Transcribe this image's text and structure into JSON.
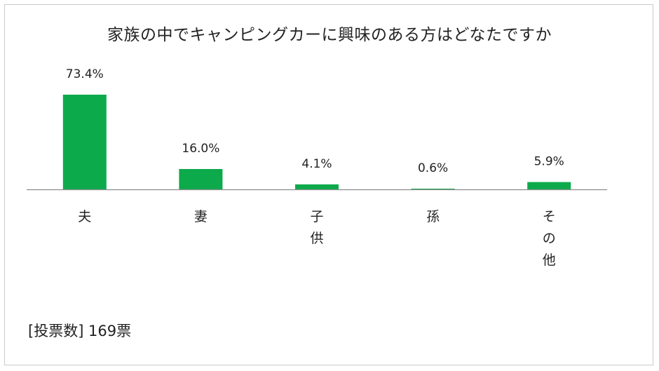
{
  "chart_data": {
    "type": "bar",
    "title": "家族の中でキャンピングカーに興味のある方はどなたですか",
    "categories": [
      "夫",
      "妻",
      "子\n供",
      "孫",
      "そ\nの\n他"
    ],
    "values": [
      73.4,
      16.0,
      4.1,
      0.6,
      5.9
    ],
    "value_labels": [
      "73.4%",
      "16.0%",
      "4.1%",
      "0.6%",
      "5.9%"
    ],
    "unit": "%",
    "ylim": [
      0,
      73.4
    ],
    "grid": false,
    "legend": "none",
    "bar_color": "#0DAA4B",
    "axis_color": "#8c8c8c"
  },
  "note": "[投票数] 169票"
}
